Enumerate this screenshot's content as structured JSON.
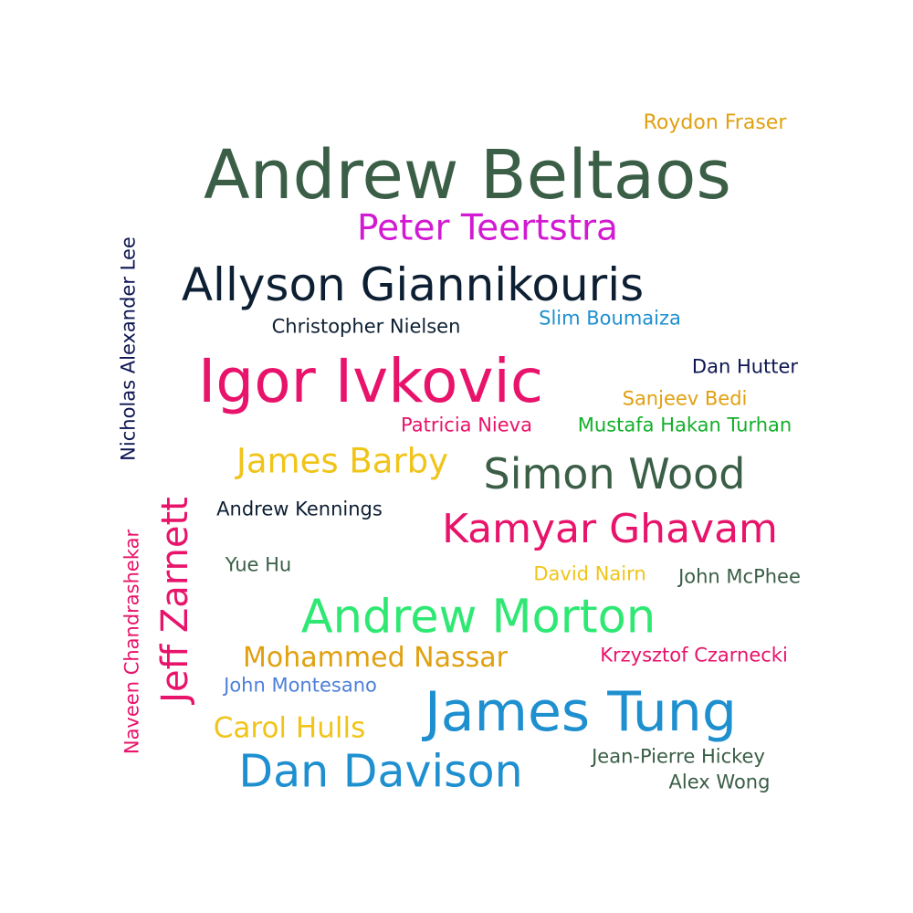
{
  "words": [
    {
      "id": "roydon-fraser",
      "text": "Roydon Fraser",
      "color": "#e0a010"
    },
    {
      "id": "andrew-beltaos",
      "text": "Andrew Beltaos",
      "color": "#3a5e46"
    },
    {
      "id": "peter-teertstra",
      "text": "Peter Teertstra",
      "color": "#d21ad2"
    },
    {
      "id": "allyson-giannikouris",
      "text": "Allyson Giannikouris",
      "color": "#0d1f33"
    },
    {
      "id": "christopher-nielsen",
      "text": "Christopher Nielsen",
      "color": "#0d1f33"
    },
    {
      "id": "slim-boumaiza",
      "text": "Slim Boumaiza",
      "color": "#1e8fcf"
    },
    {
      "id": "igor-ivkovic",
      "text": "Igor Ivkovic",
      "color": "#e8136a"
    },
    {
      "id": "dan-hutter",
      "text": "Dan Hutter",
      "color": "#0d1552"
    },
    {
      "id": "sanjeev-bedi",
      "text": "Sanjeev Bedi",
      "color": "#e0a010"
    },
    {
      "id": "patricia-nieva",
      "text": "Patricia Nieva",
      "color": "#e8136a"
    },
    {
      "id": "mustafa-hakan-turhan",
      "text": "Mustafa Hakan Turhan",
      "color": "#12b02a"
    },
    {
      "id": "james-barby",
      "text": "James Barby",
      "color": "#f0c419"
    },
    {
      "id": "simon-wood",
      "text": "Simon Wood",
      "color": "#3a5e46"
    },
    {
      "id": "andrew-kennings",
      "text": "Andrew Kennings",
      "color": "#0d1f33"
    },
    {
      "id": "kamyar-ghavam",
      "text": "Kamyar Ghavam",
      "color": "#e8136a"
    },
    {
      "id": "yue-hu",
      "text": "Yue Hu",
      "color": "#3a5e46"
    },
    {
      "id": "david-nairn",
      "text": "David Nairn",
      "color": "#f0c419"
    },
    {
      "id": "john-mcphee",
      "text": "John McPhee",
      "color": "#3a5e46"
    },
    {
      "id": "andrew-morton",
      "text": "Andrew Morton",
      "color": "#2ee873"
    },
    {
      "id": "mohammed-nassar",
      "text": "Mohammed Nassar",
      "color": "#e0a010"
    },
    {
      "id": "krzysztof-czarnecki",
      "text": "Krzysztof Czarnecki",
      "color": "#e8136a"
    },
    {
      "id": "john-montesano",
      "text": "John Montesano",
      "color": "#4e7fd8"
    },
    {
      "id": "james-tung",
      "text": "James Tung",
      "color": "#1e8fcf"
    },
    {
      "id": "carol-hulls",
      "text": "Carol Hulls",
      "color": "#f0c419"
    },
    {
      "id": "dan-davison",
      "text": "Dan Davison",
      "color": "#1e8fcf"
    },
    {
      "id": "jean-pierre-hickey",
      "text": "Jean-Pierre Hickey",
      "color": "#3a5e46"
    },
    {
      "id": "alex-wong",
      "text": "Alex Wong",
      "color": "#3a5e46"
    },
    {
      "id": "nicholas-alexander-lee",
      "text": "Nicholas Alexander Lee",
      "color": "#0d1552"
    },
    {
      "id": "jeff-zarnett",
      "text": "Jeff Zarnett",
      "color": "#e8136a"
    },
    {
      "id": "naveen-chandrashekar",
      "text": "Naveen Chandrashekar",
      "color": "#e8136a"
    }
  ]
}
